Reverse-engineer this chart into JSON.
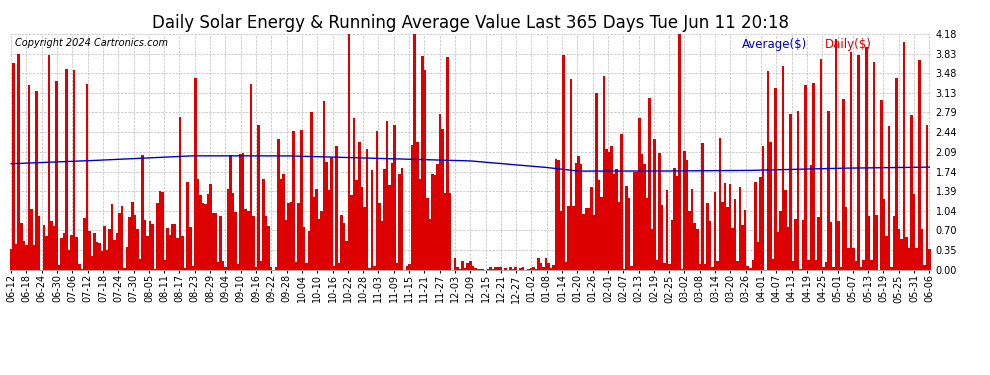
{
  "title": "Daily Solar Energy & Running Average Value Last 365 Days Tue Jun 11 20:18",
  "copyright": "Copyright 2024 Cartronics.com",
  "legend_avg": "Average($)",
  "legend_daily": "Daily($)",
  "bar_color": "#dd0000",
  "avg_line_color": "#0000cc",
  "background_color": "#ffffff",
  "plot_bg_color": "#ffffff",
  "grid_color": "#bbbbbb",
  "ylim": [
    0.0,
    4.18
  ],
  "yticks": [
    0.0,
    0.35,
    0.7,
    1.04,
    1.39,
    1.74,
    2.09,
    2.44,
    2.79,
    3.13,
    3.48,
    3.83,
    4.18
  ],
  "title_fontsize": 12,
  "copyright_fontsize": 7,
  "tick_fontsize": 7,
  "n_bars": 365,
  "x_labels": [
    "06-12",
    "06-18",
    "06-24",
    "06-30",
    "07-06",
    "07-12",
    "07-18",
    "07-24",
    "07-30",
    "08-05",
    "08-11",
    "08-17",
    "08-23",
    "08-29",
    "09-04",
    "09-10",
    "09-16",
    "09-22",
    "09-28",
    "10-04",
    "10-10",
    "10-16",
    "10-22",
    "10-28",
    "11-03",
    "11-09",
    "11-15",
    "11-21",
    "11-27",
    "12-03",
    "12-09",
    "12-15",
    "12-21",
    "12-27",
    "01-02",
    "01-08",
    "01-14",
    "01-20",
    "01-26",
    "02-01",
    "02-07",
    "02-13",
    "02-19",
    "02-25",
    "03-02",
    "03-08",
    "03-14",
    "03-20",
    "03-26",
    "04-01",
    "04-07",
    "04-13",
    "04-19",
    "04-25",
    "05-01",
    "05-07",
    "05-13",
    "05-19",
    "05-25",
    "05-31",
    "06-06"
  ],
  "avg_keypoints_x": [
    0,
    0.08,
    0.2,
    0.3,
    0.5,
    0.58,
    0.62,
    0.7,
    0.8,
    0.9,
    1.0
  ],
  "avg_keypoints_y": [
    1.88,
    1.93,
    2.02,
    2.02,
    1.93,
    1.82,
    1.75,
    1.75,
    1.76,
    1.8,
    1.82
  ]
}
